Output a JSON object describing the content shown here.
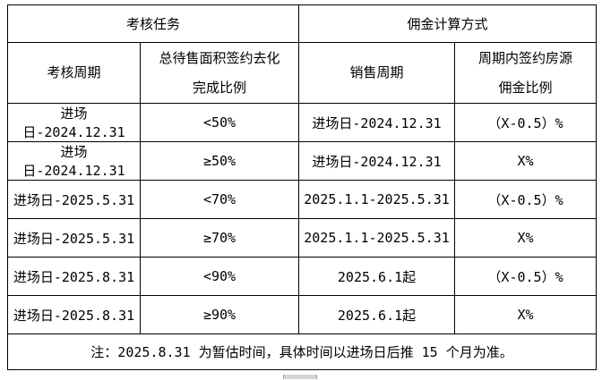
{
  "page": {
    "background": "#ffffff",
    "border_color": "#000000",
    "text_color": "#000000"
  },
  "table": {
    "group_headers": [
      {
        "label": "考核任务"
      },
      {
        "label": "佣金计算方式"
      }
    ],
    "column_headers": [
      "考核周期",
      "总待售面积签约去化\n完成比例",
      "销售周期",
      "周期内签约房源\n佣金比例"
    ],
    "rows": [
      [
        "进场日-2024.12.31",
        "<50%",
        "进场日-2024.12.31",
        "（X-0.5）%"
      ],
      [
        "进场日-2024.12.31",
        "≥50%",
        "进场日-2024.12.31",
        "X%"
      ],
      [
        "进场日-2025.5.31",
        "<70%",
        "2025.1.1-2025.5.31",
        "（X-0.5）%"
      ],
      [
        "进场日-2025.5.31",
        "≥70%",
        "2025.1.1-2025.5.31",
        "X%"
      ],
      [
        "进场日-2025.8.31",
        "<90%",
        "2025.6.1起",
        "（X-0.5）%"
      ],
      [
        "进场日-2025.8.31",
        "≥90%",
        "2025.6.1起",
        "X%"
      ]
    ],
    "note": "注：2025.8.31 为暂估时间，具体时间以进场日后推 15 个月为准。"
  }
}
